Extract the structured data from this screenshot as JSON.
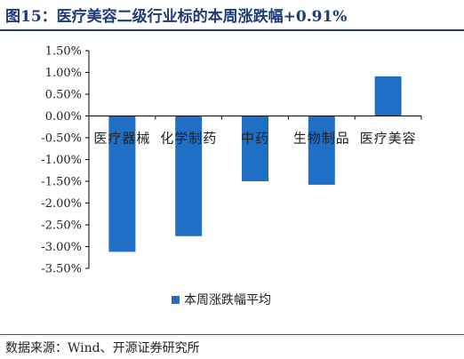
{
  "title": "图15：医疗美容二级行业标的本周涨跌幅+0.91%",
  "source": "数据来源：Wind、开源证券研究所",
  "colors": {
    "bar": "#1f6fc6",
    "title": "#1f3a7a"
  },
  "chart_data": {
    "type": "bar",
    "categories": [
      "医疗器械",
      "化学制药",
      "中药",
      "生物制品",
      "医疗美容"
    ],
    "series": [
      {
        "name": "本周涨跌幅平均",
        "values": [
          -3.12,
          -2.76,
          -1.5,
          -1.58,
          0.91
        ]
      }
    ],
    "yticks": [
      "1.50%",
      "1.00%",
      "0.50%",
      "0.00%",
      "-0.50%",
      "-1.00%",
      "-1.50%",
      "-2.00%",
      "-2.50%",
      "-3.00%",
      "-3.50%"
    ],
    "ylim": [
      -3.5,
      1.5
    ],
    "yunit": "%",
    "legend_position": "bottom-center",
    "grid": false
  }
}
